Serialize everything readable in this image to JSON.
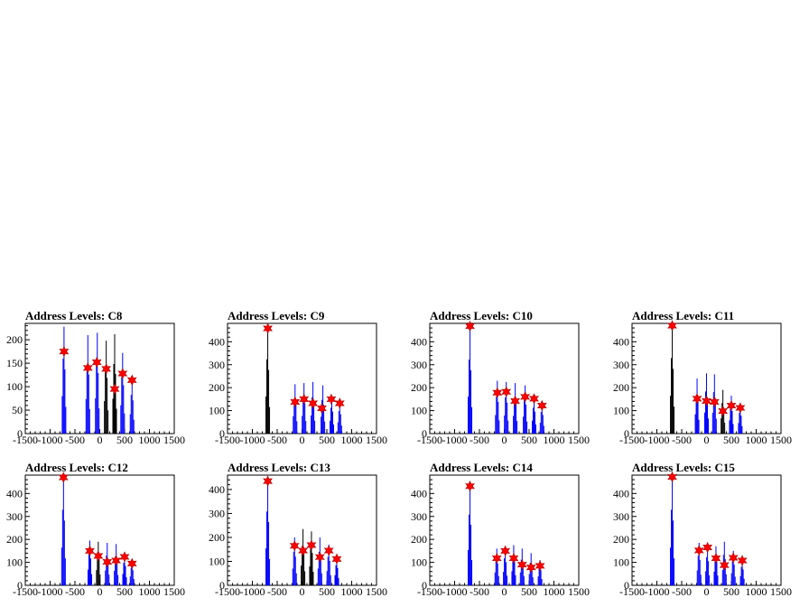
{
  "chart_data": [
    {
      "type": "bar",
      "title": "Address Levels: C8",
      "xlim": [
        -1500,
        1500
      ],
      "ylim": [
        0,
        235
      ],
      "yticks": [
        0,
        50,
        100,
        150,
        200
      ],
      "xticks": [
        -1500,
        -1000,
        -500,
        0,
        500,
        1000,
        1500
      ],
      "peaks": [
        {
          "x": -720,
          "y": 228,
          "c": "blue"
        },
        {
          "x": -240,
          "y": 210,
          "c": "blue"
        },
        {
          "x": -50,
          "y": 215,
          "c": "blue"
        },
        {
          "x": 130,
          "y": 198,
          "c": "black"
        },
        {
          "x": 300,
          "y": 212,
          "c": "black"
        },
        {
          "x": 460,
          "y": 172,
          "c": "blue"
        },
        {
          "x": 650,
          "y": 118,
          "c": "blue"
        }
      ],
      "markers": [
        {
          "x": -720,
          "y": 175
        },
        {
          "x": -240,
          "y": 140
        },
        {
          "x": -60,
          "y": 152
        },
        {
          "x": 130,
          "y": 138
        },
        {
          "x": 300,
          "y": 95
        },
        {
          "x": 460,
          "y": 128
        },
        {
          "x": 650,
          "y": 114
        }
      ]
    },
    {
      "type": "bar",
      "title": "Address Levels: C9",
      "xlim": [
        -1500,
        1500
      ],
      "ylim": [
        0,
        480
      ],
      "yticks": [
        0,
        100,
        200,
        300,
        400
      ],
      "xticks": [
        -1500,
        -1000,
        -500,
        0,
        500,
        1000,
        1500
      ],
      "peaks": [
        {
          "x": -690,
          "y": 462,
          "c": "black"
        },
        {
          "x": -140,
          "y": 215,
          "c": "blue"
        },
        {
          "x": 40,
          "y": 220,
          "c": "blue"
        },
        {
          "x": 220,
          "y": 225,
          "c": "blue"
        },
        {
          "x": 420,
          "y": 210,
          "c": "blue"
        },
        {
          "x": 600,
          "y": 160,
          "c": "blue"
        },
        {
          "x": 760,
          "y": 140,
          "c": "blue"
        }
      ],
      "markers": [
        {
          "x": -690,
          "y": 458
        },
        {
          "x": -140,
          "y": 138
        },
        {
          "x": 40,
          "y": 150
        },
        {
          "x": 220,
          "y": 132
        },
        {
          "x": 400,
          "y": 110
        },
        {
          "x": 590,
          "y": 150
        },
        {
          "x": 760,
          "y": 132
        }
      ]
    },
    {
      "type": "bar",
      "title": "Address Levels: C10",
      "xlim": [
        -1500,
        1500
      ],
      "ylim": [
        0,
        480
      ],
      "yticks": [
        0,
        100,
        200,
        300,
        400
      ],
      "xticks": [
        -1500,
        -1000,
        -500,
        0,
        500,
        1000,
        1500
      ],
      "peaks": [
        {
          "x": -690,
          "y": 460,
          "c": "blue"
        },
        {
          "x": -140,
          "y": 230,
          "c": "blue"
        },
        {
          "x": 40,
          "y": 225,
          "c": "blue"
        },
        {
          "x": 220,
          "y": 220,
          "c": "blue"
        },
        {
          "x": 420,
          "y": 210,
          "c": "blue"
        },
        {
          "x": 600,
          "y": 160,
          "c": "blue"
        },
        {
          "x": 760,
          "y": 135,
          "c": "blue"
        }
      ],
      "markers": [
        {
          "x": -690,
          "y": 468
        },
        {
          "x": -140,
          "y": 178
        },
        {
          "x": 40,
          "y": 182
        },
        {
          "x": 220,
          "y": 142
        },
        {
          "x": 420,
          "y": 160
        },
        {
          "x": 600,
          "y": 152
        },
        {
          "x": 760,
          "y": 122
        }
      ]
    },
    {
      "type": "bar",
      "title": "Address Levels: C11",
      "xlim": [
        -1500,
        1500
      ],
      "ylim": [
        0,
        480
      ],
      "yticks": [
        0,
        100,
        200,
        300,
        400
      ],
      "xticks": [
        -1500,
        -1000,
        -500,
        0,
        500,
        1000,
        1500
      ],
      "peaks": [
        {
          "x": -690,
          "y": 470,
          "c": "black"
        },
        {
          "x": -190,
          "y": 240,
          "c": "blue"
        },
        {
          "x": 0,
          "y": 262,
          "c": "blue"
        },
        {
          "x": 160,
          "y": 258,
          "c": "blue"
        },
        {
          "x": 330,
          "y": 190,
          "c": "black"
        },
        {
          "x": 500,
          "y": 165,
          "c": "blue"
        },
        {
          "x": 680,
          "y": 130,
          "c": "blue"
        }
      ],
      "markers": [
        {
          "x": -690,
          "y": 470
        },
        {
          "x": -190,
          "y": 152
        },
        {
          "x": 0,
          "y": 142
        },
        {
          "x": 160,
          "y": 138
        },
        {
          "x": 330,
          "y": 98
        },
        {
          "x": 500,
          "y": 122
        },
        {
          "x": 680,
          "y": 112
        }
      ]
    },
    {
      "type": "bar",
      "title": "Address Levels: C12",
      "xlim": [
        -1500,
        1500
      ],
      "ylim": [
        0,
        480
      ],
      "yticks": [
        0,
        100,
        200,
        300,
        400
      ],
      "xticks": [
        -1500,
        -1000,
        -500,
        0,
        500,
        1000,
        1500
      ],
      "peaks": [
        {
          "x": -730,
          "y": 470,
          "c": "blue"
        },
        {
          "x": -200,
          "y": 195,
          "c": "blue"
        },
        {
          "x": -30,
          "y": 190,
          "c": "black"
        },
        {
          "x": 150,
          "y": 185,
          "c": "blue"
        },
        {
          "x": 330,
          "y": 180,
          "c": "blue"
        },
        {
          "x": 500,
          "y": 140,
          "c": "blue"
        },
        {
          "x": 650,
          "y": 110,
          "c": "blue"
        }
      ],
      "markers": [
        {
          "x": -730,
          "y": 470
        },
        {
          "x": -200,
          "y": 150
        },
        {
          "x": -30,
          "y": 128
        },
        {
          "x": 150,
          "y": 102
        },
        {
          "x": 330,
          "y": 108
        },
        {
          "x": 500,
          "y": 124
        },
        {
          "x": 650,
          "y": 95
        }
      ]
    },
    {
      "type": "bar",
      "title": "Address Levels: C13",
      "xlim": [
        -1500,
        1500
      ],
      "ylim": [
        0,
        460
      ],
      "yticks": [
        0,
        100,
        200,
        300,
        400
      ],
      "xticks": [
        -1500,
        -1000,
        -500,
        0,
        500,
        1000,
        1500
      ],
      "peaks": [
        {
          "x": -690,
          "y": 440,
          "c": "blue"
        },
        {
          "x": -150,
          "y": 200,
          "c": "blue"
        },
        {
          "x": 20,
          "y": 235,
          "c": "black"
        },
        {
          "x": 190,
          "y": 225,
          "c": "black"
        },
        {
          "x": 360,
          "y": 200,
          "c": "blue"
        },
        {
          "x": 540,
          "y": 170,
          "c": "blue"
        },
        {
          "x": 700,
          "y": 120,
          "c": "blue"
        }
      ],
      "markers": [
        {
          "x": -690,
          "y": 435
        },
        {
          "x": -150,
          "y": 165
        },
        {
          "x": 20,
          "y": 145
        },
        {
          "x": 190,
          "y": 168
        },
        {
          "x": 360,
          "y": 118
        },
        {
          "x": 540,
          "y": 145
        },
        {
          "x": 700,
          "y": 110
        }
      ]
    },
    {
      "type": "bar",
      "title": "Address Levels: C14",
      "xlim": [
        -1500,
        1500
      ],
      "ylim": [
        0,
        480
      ],
      "yticks": [
        0,
        100,
        200,
        300,
        400
      ],
      "xticks": [
        -1500,
        -1000,
        -500,
        0,
        500,
        1000,
        1500
      ],
      "peaks": [
        {
          "x": -690,
          "y": 440,
          "c": "blue"
        },
        {
          "x": -150,
          "y": 160,
          "c": "blue"
        },
        {
          "x": 20,
          "y": 168,
          "c": "blue"
        },
        {
          "x": 190,
          "y": 175,
          "c": "blue"
        },
        {
          "x": 360,
          "y": 160,
          "c": "blue"
        },
        {
          "x": 540,
          "y": 140,
          "c": "blue"
        },
        {
          "x": 720,
          "y": 110,
          "c": "blue"
        }
      ],
      "markers": [
        {
          "x": -690,
          "y": 432
        },
        {
          "x": -150,
          "y": 118
        },
        {
          "x": 20,
          "y": 150
        },
        {
          "x": 190,
          "y": 118
        },
        {
          "x": 360,
          "y": 90
        },
        {
          "x": 540,
          "y": 78
        },
        {
          "x": 720,
          "y": 85
        }
      ]
    },
    {
      "type": "bar",
      "title": "Address Levels: C15",
      "xlim": [
        -1500,
        1500
      ],
      "ylim": [
        0,
        480
      ],
      "yticks": [
        0,
        100,
        200,
        300,
        400
      ],
      "xticks": [
        -1500,
        -1000,
        -500,
        0,
        500,
        1000,
        1500
      ],
      "peaks": [
        {
          "x": -690,
          "y": 470,
          "c": "blue"
        },
        {
          "x": -150,
          "y": 185,
          "c": "blue"
        },
        {
          "x": 20,
          "y": 175,
          "c": "blue"
        },
        {
          "x": 190,
          "y": 170,
          "c": "blue"
        },
        {
          "x": 360,
          "y": 190,
          "c": "blue"
        },
        {
          "x": 540,
          "y": 150,
          "c": "blue"
        },
        {
          "x": 720,
          "y": 115,
          "c": "blue"
        }
      ],
      "markers": [
        {
          "x": -690,
          "y": 472
        },
        {
          "x": -150,
          "y": 152
        },
        {
          "x": 20,
          "y": 165
        },
        {
          "x": 190,
          "y": 118
        },
        {
          "x": 360,
          "y": 88
        },
        {
          "x": 540,
          "y": 120
        },
        {
          "x": 720,
          "y": 108
        }
      ]
    }
  ],
  "colors": {
    "series_main": "#0000ff",
    "series_alt": "#000000",
    "marker": "#ff0000",
    "axis": "#000000"
  }
}
